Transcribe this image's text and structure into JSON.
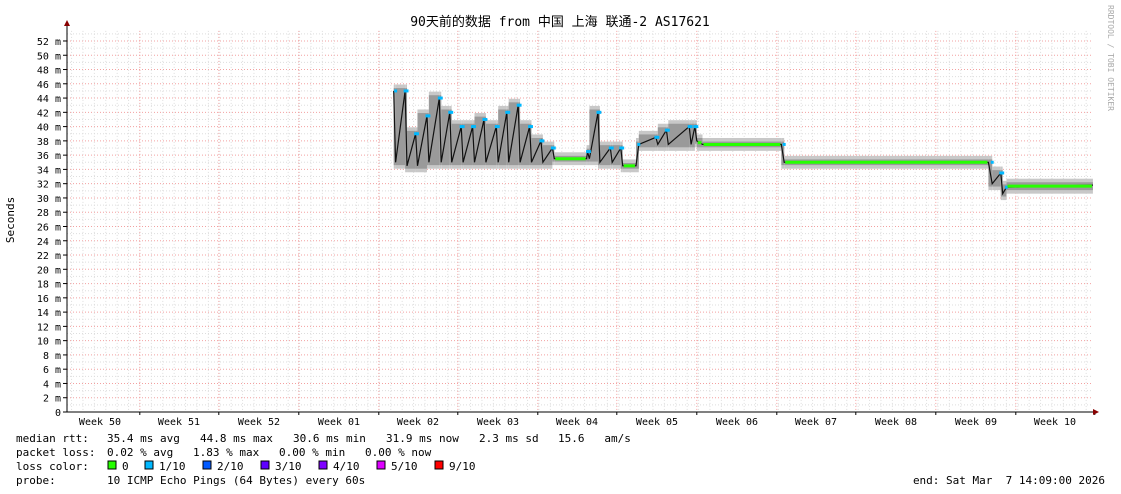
{
  "chart_data": {
    "type": "line",
    "title": "90天前的数据 from 中国 上海 联通-2 AS17621",
    "ylabel": "Seconds",
    "watermark": "RRDTOOL / TOBI OETIKER",
    "ylim": [
      0,
      53
    ],
    "y_ticks": [
      "0",
      "2 m",
      "4 m",
      "6 m",
      "8 m",
      "10 m",
      "12 m",
      "14 m",
      "16 m",
      "18 m",
      "20 m",
      "22 m",
      "24 m",
      "26 m",
      "28 m",
      "30 m",
      "32 m",
      "34 m",
      "36 m",
      "38 m",
      "40 m",
      "42 m",
      "44 m",
      "46 m",
      "48 m",
      "50 m",
      "52 m"
    ],
    "x_ticks": [
      "Week 50",
      "Week 51",
      "Week 52",
      "Week 01",
      "Week 02",
      "Week 03",
      "Week 04",
      "Week 05",
      "Week 06",
      "Week 07",
      "Week 08",
      "Week 09",
      "Week 10"
    ],
    "grid": true,
    "series": [
      {
        "unit": "ms",
        "points": [
          [
            "2026-01-05T06:00",
            45
          ],
          [
            "2026-01-05T10:00",
            35
          ],
          [
            "2026-01-06T06:00",
            45
          ],
          [
            "2026-01-06T10:00",
            34.5
          ],
          [
            "2026-01-07T04:00",
            39
          ],
          [
            "2026-01-07T08:00",
            34.5
          ],
          [
            "2026-01-08T04:00",
            41.5
          ],
          [
            "2026-01-08T08:00",
            35
          ],
          [
            "2026-01-09T06:00",
            44
          ],
          [
            "2026-01-09T10:00",
            35
          ],
          [
            "2026-01-10T04:00",
            42
          ],
          [
            "2026-01-10T08:00",
            35
          ],
          [
            "2026-01-11T04:00",
            40
          ],
          [
            "2026-01-11T08:00",
            35
          ],
          [
            "2026-01-12T04:00",
            40
          ],
          [
            "2026-01-12T08:00",
            35
          ],
          [
            "2026-01-13T04:00",
            41
          ],
          [
            "2026-01-13T08:00",
            35
          ],
          [
            "2026-01-14T06:00",
            40
          ],
          [
            "2026-01-14T10:00",
            35
          ],
          [
            "2026-01-15T04:00",
            42
          ],
          [
            "2026-01-15T08:00",
            35
          ],
          [
            "2026-01-16T04:00",
            43
          ],
          [
            "2026-01-16T08:00",
            35
          ],
          [
            "2026-01-17T04:00",
            40
          ],
          [
            "2026-01-17T08:00",
            35
          ],
          [
            "2026-01-18T04:00",
            38
          ],
          [
            "2026-01-18T08:00",
            35
          ],
          [
            "2026-01-19T04:00",
            37
          ],
          [
            "2026-01-19T08:00",
            35.5
          ],
          [
            "2026-01-22T04:00",
            35.5
          ],
          [
            "2026-01-22T06:00",
            36.5
          ],
          [
            "2026-01-22T10:00",
            35.5
          ],
          [
            "2026-01-23T04:00",
            42
          ],
          [
            "2026-01-23T08:00",
            35
          ],
          [
            "2026-01-24T06:00",
            37
          ],
          [
            "2026-01-24T10:00",
            35
          ],
          [
            "2026-01-25T04:00",
            37
          ],
          [
            "2026-01-25T08:00",
            34.5
          ],
          [
            "2026-01-26T12:00",
            34.5
          ],
          [
            "2026-01-26T18:00",
            37.5
          ],
          [
            "2026-01-28T06:00",
            38.5
          ],
          [
            "2026-01-28T10:00",
            37.5
          ],
          [
            "2026-01-29T04:00",
            39.5
          ],
          [
            "2026-01-29T08:00",
            37.5
          ],
          [
            "2026-01-31T04:00",
            40
          ],
          [
            "2026-01-31T08:00",
            37.5
          ],
          [
            "2026-01-31T16:00",
            40
          ],
          [
            "2026-01-31T20:00",
            38
          ],
          [
            "2026-02-01T08:00",
            37.5
          ],
          [
            "2026-02-08T06:00",
            37.5
          ],
          [
            "2026-02-08T12:00",
            35
          ],
          [
            "2026-02-26T10:00",
            35
          ],
          [
            "2026-02-26T18:00",
            32
          ],
          [
            "2026-02-27T12:00",
            33.5
          ],
          [
            "2026-02-27T16:00",
            30.6
          ],
          [
            "2026-02-28T00:00",
            31.5
          ],
          [
            "2026-03-07T14:00",
            31.8
          ]
        ]
      }
    ],
    "legend": {
      "median_rtt": {
        "label": "median rtt:",
        "avg": "35.4 ms avg",
        "max": "44.8 ms max",
        "min": "30.6 ms min",
        "now": "31.9 ms now",
        "sd": "2.3 ms sd",
        "ams": "15.6   am/s"
      },
      "packet_loss": {
        "label": "packet loss:",
        "avg": "0.02 % avg",
        "max": "1.83 % max",
        "min": "0.00 % min",
        "now": "0.00 % now"
      },
      "loss_color": {
        "label": "loss color:",
        "items": [
          {
            "label": "0",
            "color": "#26ff00"
          },
          {
            "label": "1/10",
            "color": "#00b8ff"
          },
          {
            "label": "2/10",
            "color": "#0059ff"
          },
          {
            "label": "3/10",
            "color": "#5e00ff"
          },
          {
            "label": "4/10",
            "color": "#7e00ff"
          },
          {
            "label": "5/10",
            "color": "#dd00ff"
          },
          {
            "label": "9/10",
            "color": "#ff0000"
          }
        ]
      },
      "probe": {
        "label": "probe:",
        "value": "10 ICMP Echo Pings (64 Bytes) every 60s"
      },
      "end": "end: Sat Mar  7 14:09:00 2026"
    }
  }
}
